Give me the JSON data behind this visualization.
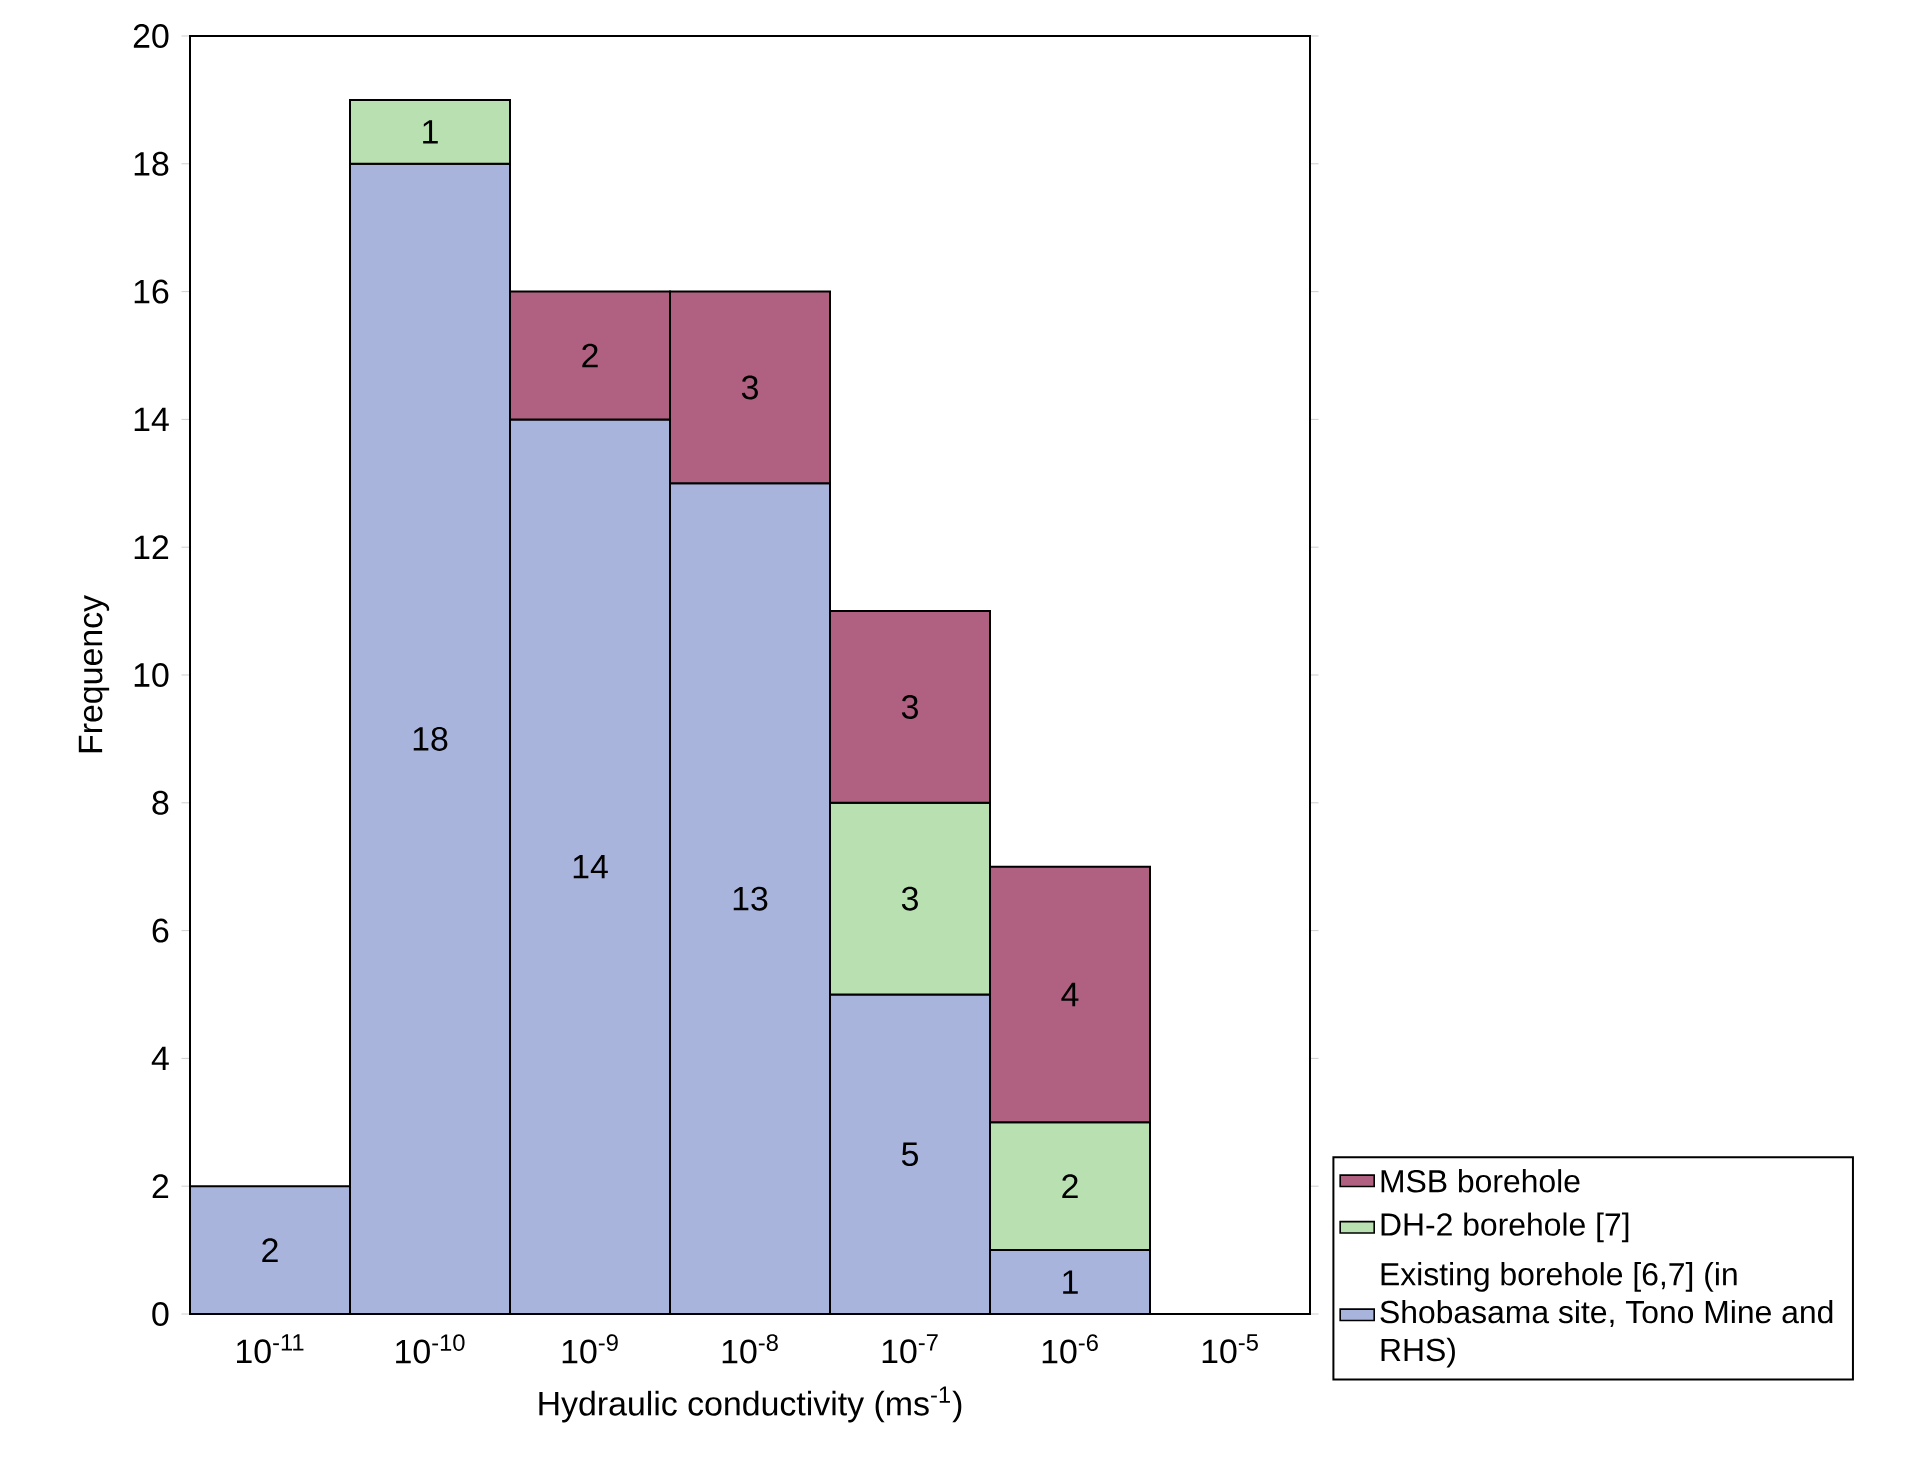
{
  "chart_data": {
    "type": "bar",
    "stacked": true,
    "xlabel": "Hydraulic conductivity (ms$^{-1}$)",
    "ylabel": "Frequency",
    "categories": [
      "10$^{-11}$",
      "10$^{-10}$",
      "10$^{-9}$",
      "10$^{-8}$",
      "10$^{-7}$",
      "10$^{-6}$",
      "10$^{-5}$"
    ],
    "series": [
      {
        "name": "Existing borehole [6,7] (in Shobasama site, Tono Mine and RHS)",
        "color": "#a8b4dc",
        "values": [
          2,
          18,
          14,
          13,
          5,
          1,
          null
        ]
      },
      {
        "name": "DH-2 borehole [7]",
        "color": "#b8e0b0",
        "values": [
          null,
          1,
          null,
          null,
          3,
          2,
          null
        ]
      },
      {
        "name": "MSB borehole",
        "color": "#b06080",
        "values": [
          null,
          null,
          2,
          3,
          3,
          4,
          null
        ]
      }
    ],
    "ylim": [
      0,
      20
    ],
    "yticks": [
      0,
      2,
      4,
      6,
      8,
      10,
      12,
      14,
      16,
      18,
      20
    ],
    "data_labels": true,
    "legend": "bottom right",
    "grid": false
  }
}
